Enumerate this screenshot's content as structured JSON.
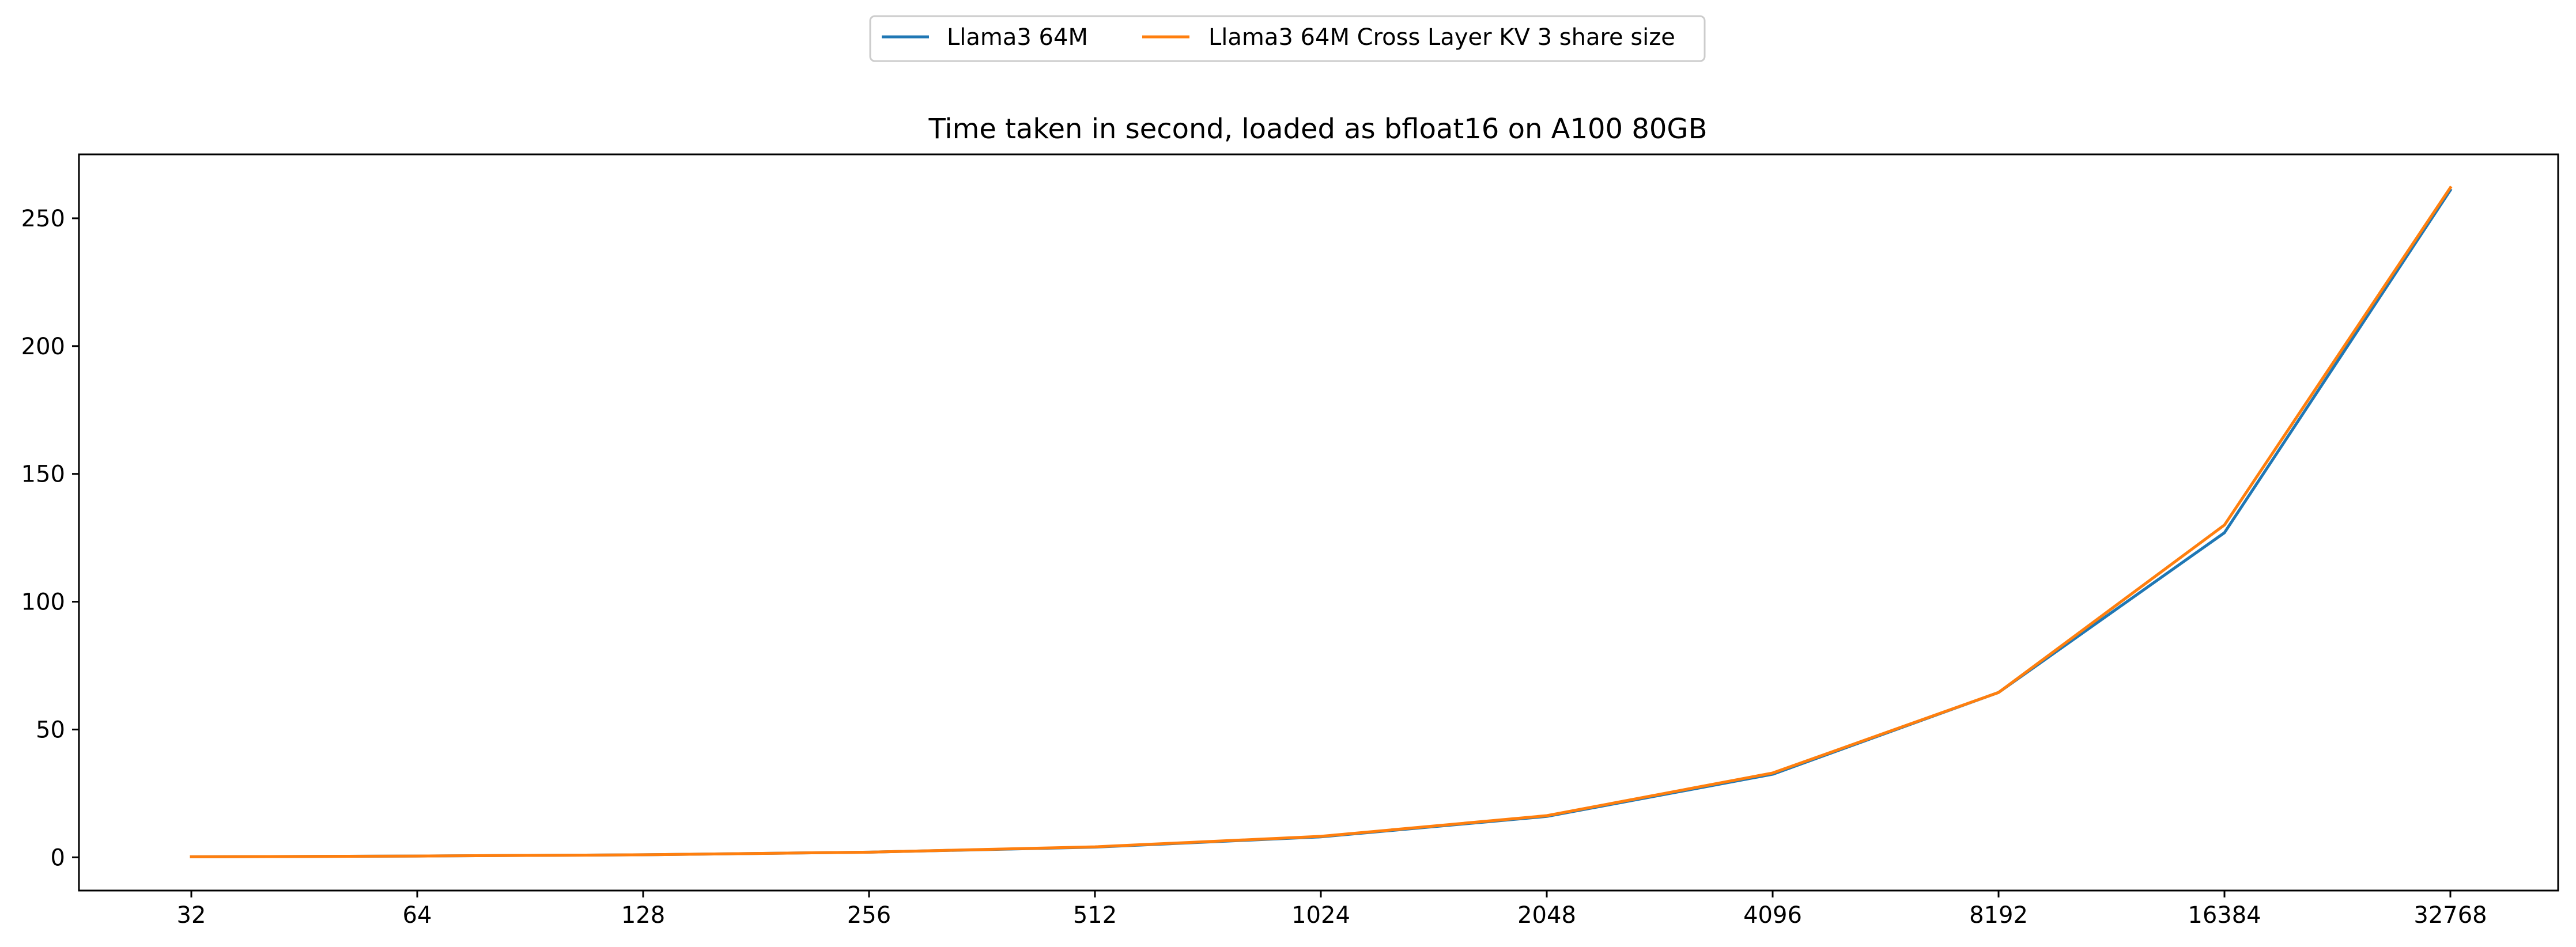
{
  "chart_data": {
    "type": "line",
    "title": "Time taken in second, loaded as bfloat16 on A100 80GB",
    "xlabel": "",
    "ylabel": "",
    "categories": [
      "32",
      "64",
      "128",
      "256",
      "512",
      "1024",
      "2048",
      "4096",
      "8192",
      "16384",
      "32768"
    ],
    "ylim": [
      -13,
      275
    ],
    "yticks": [
      0,
      50,
      100,
      150,
      200,
      250
    ],
    "grid": false,
    "legend_placement": "top-center",
    "series": [
      {
        "name": "Llama3 64M",
        "color": "#1f77b4",
        "values": [
          0.2,
          0.5,
          1.0,
          2.0,
          4.0,
          8.0,
          16.0,
          32.5,
          64.5,
          127.0,
          261.0
        ]
      },
      {
        "name": "Llama3 64M Cross Layer KV 3 share size",
        "color": "#ff7f0e",
        "values": [
          0.2,
          0.5,
          1.0,
          2.0,
          4.1,
          8.2,
          16.3,
          33.0,
          64.5,
          130.0,
          262.0
        ]
      }
    ]
  }
}
